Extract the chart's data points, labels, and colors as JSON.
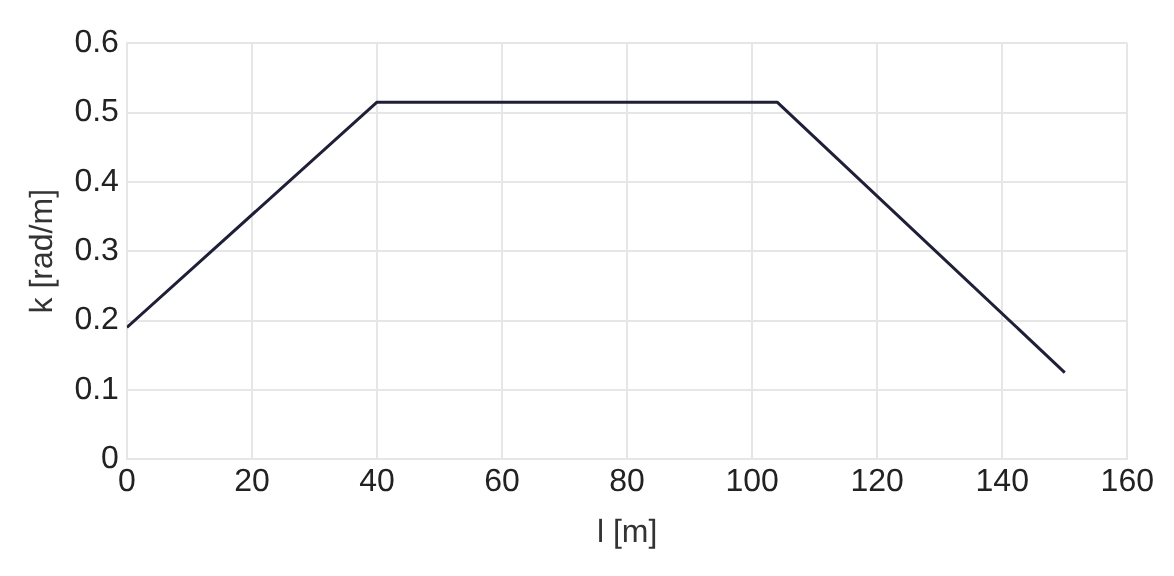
{
  "chart_data": {
    "type": "line",
    "xlabel": "l [m]",
    "ylabel": "k [rad/m]",
    "x": [
      0,
      40,
      104,
      150
    ],
    "series": [
      {
        "color": "#1f2038",
        "values": [
          0.19,
          0.515,
          0.515,
          0.125
        ]
      }
    ],
    "xlim": [
      0,
      160
    ],
    "xticks": [
      0,
      20,
      40,
      60,
      80,
      100,
      120,
      140,
      160
    ],
    "ylim": [
      0,
      0.6
    ],
    "yticks": [
      0,
      0.1,
      0.2,
      0.3,
      0.4,
      0.5,
      0.6
    ],
    "grid": true,
    "legend": false,
    "marker": "none",
    "line_style": "solid"
  }
}
